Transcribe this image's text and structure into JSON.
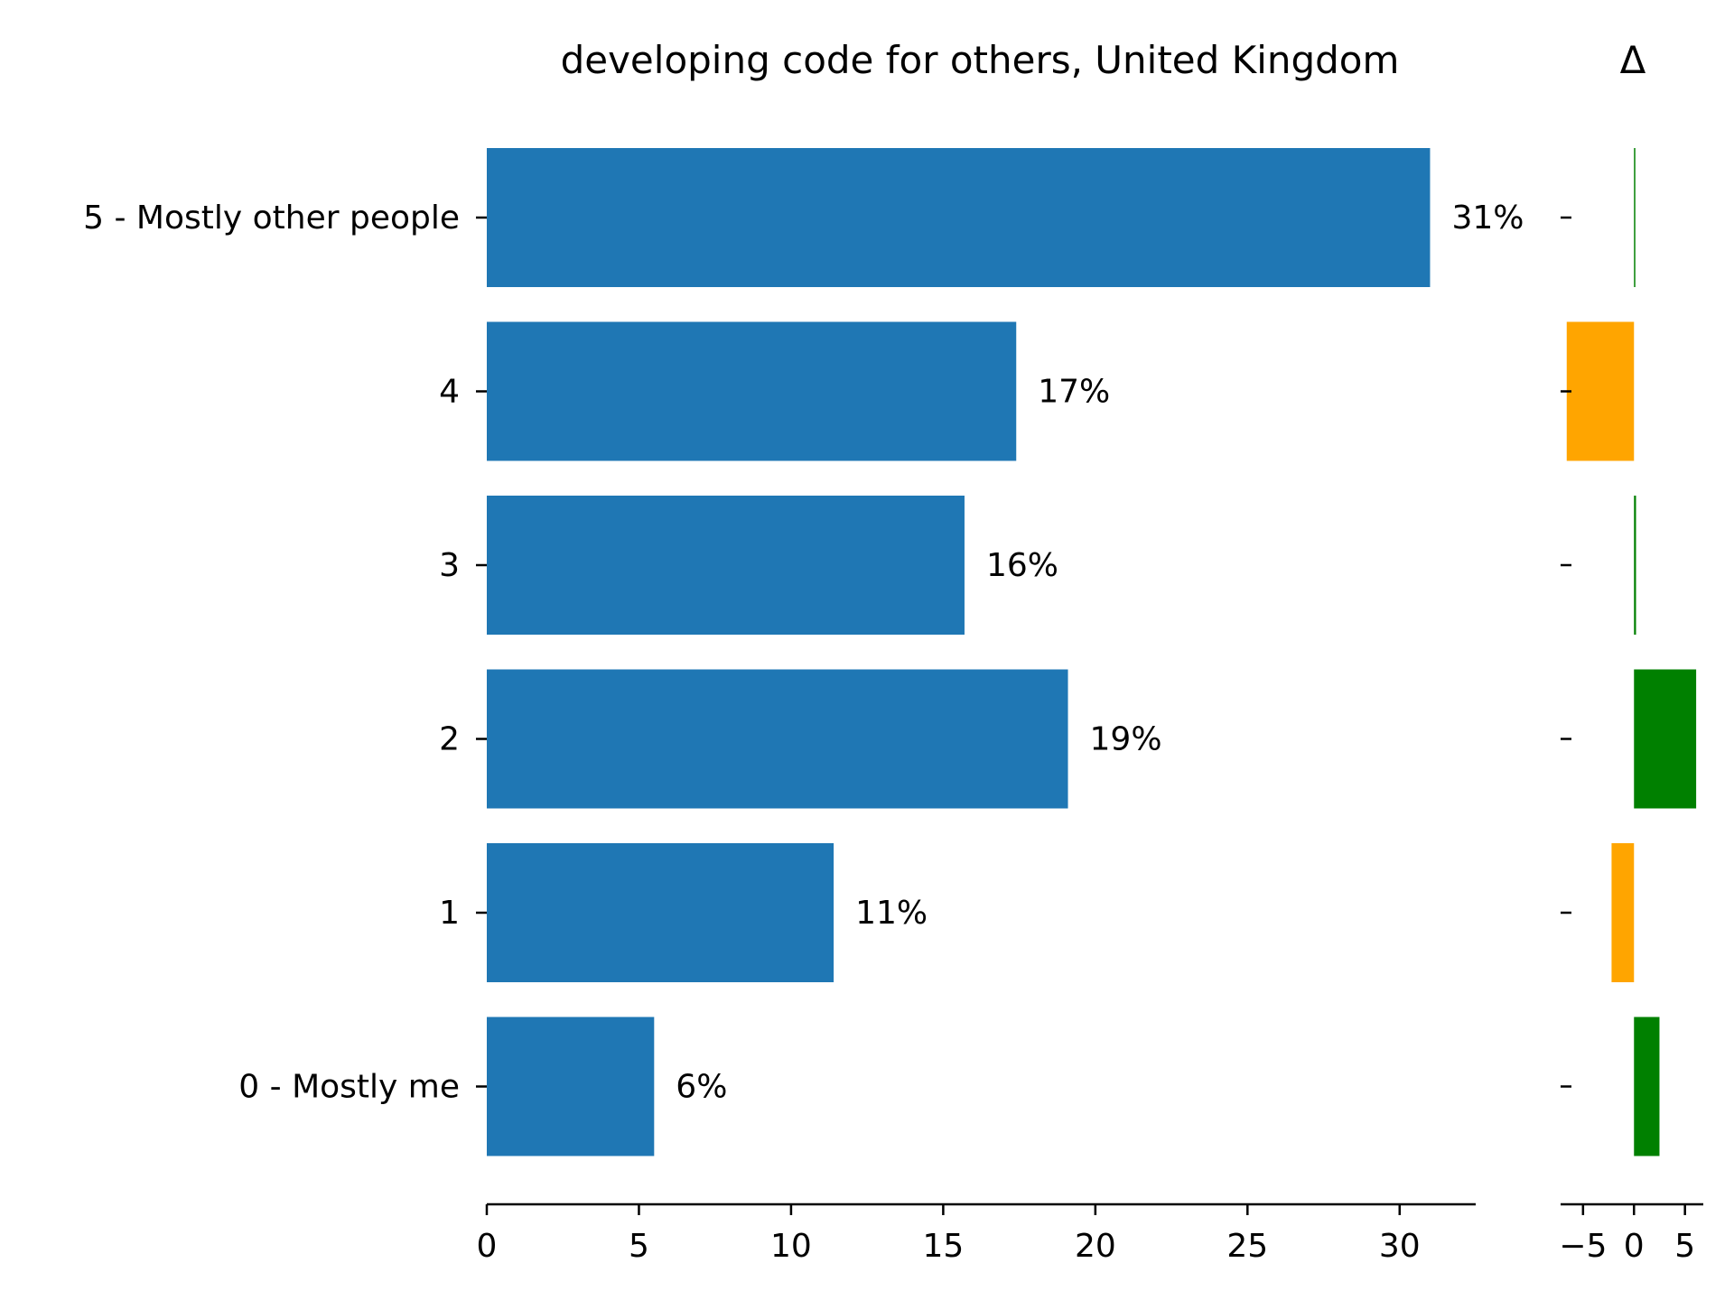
{
  "chart_data": [
    {
      "type": "bar",
      "orientation": "horizontal",
      "title": "developing code for others, United Kingdom",
      "categories": [
        "5 - Mostly other people",
        "4",
        "3",
        "2",
        "1",
        "0 - Mostly me"
      ],
      "values": [
        31.0,
        17.4,
        15.7,
        19.1,
        11.4,
        5.5
      ],
      "data_labels": [
        "31%",
        "17%",
        "16%",
        "19%",
        "11%",
        "6%"
      ],
      "xlim": [
        0,
        32.5
      ],
      "xticks": [
        0,
        5,
        10,
        15,
        20,
        25,
        30
      ],
      "color": "#1f77b4",
      "grid": false
    },
    {
      "type": "bar",
      "orientation": "horizontal",
      "title": "Δ",
      "categories": [
        "5 - Mostly other people",
        "4",
        "3",
        "2",
        "1",
        "0 - Mostly me"
      ],
      "values": [
        0.05,
        -6.6,
        0.2,
        6.1,
        -2.2,
        2.5
      ],
      "xlim": [
        -7.2,
        6.8
      ],
      "xticks": [
        -5,
        0,
        5
      ],
      "xtick_labels": [
        "−5",
        "0",
        "5"
      ],
      "positive_color": "#008000",
      "negative_color": "#ffa500",
      "grid": false
    }
  ]
}
